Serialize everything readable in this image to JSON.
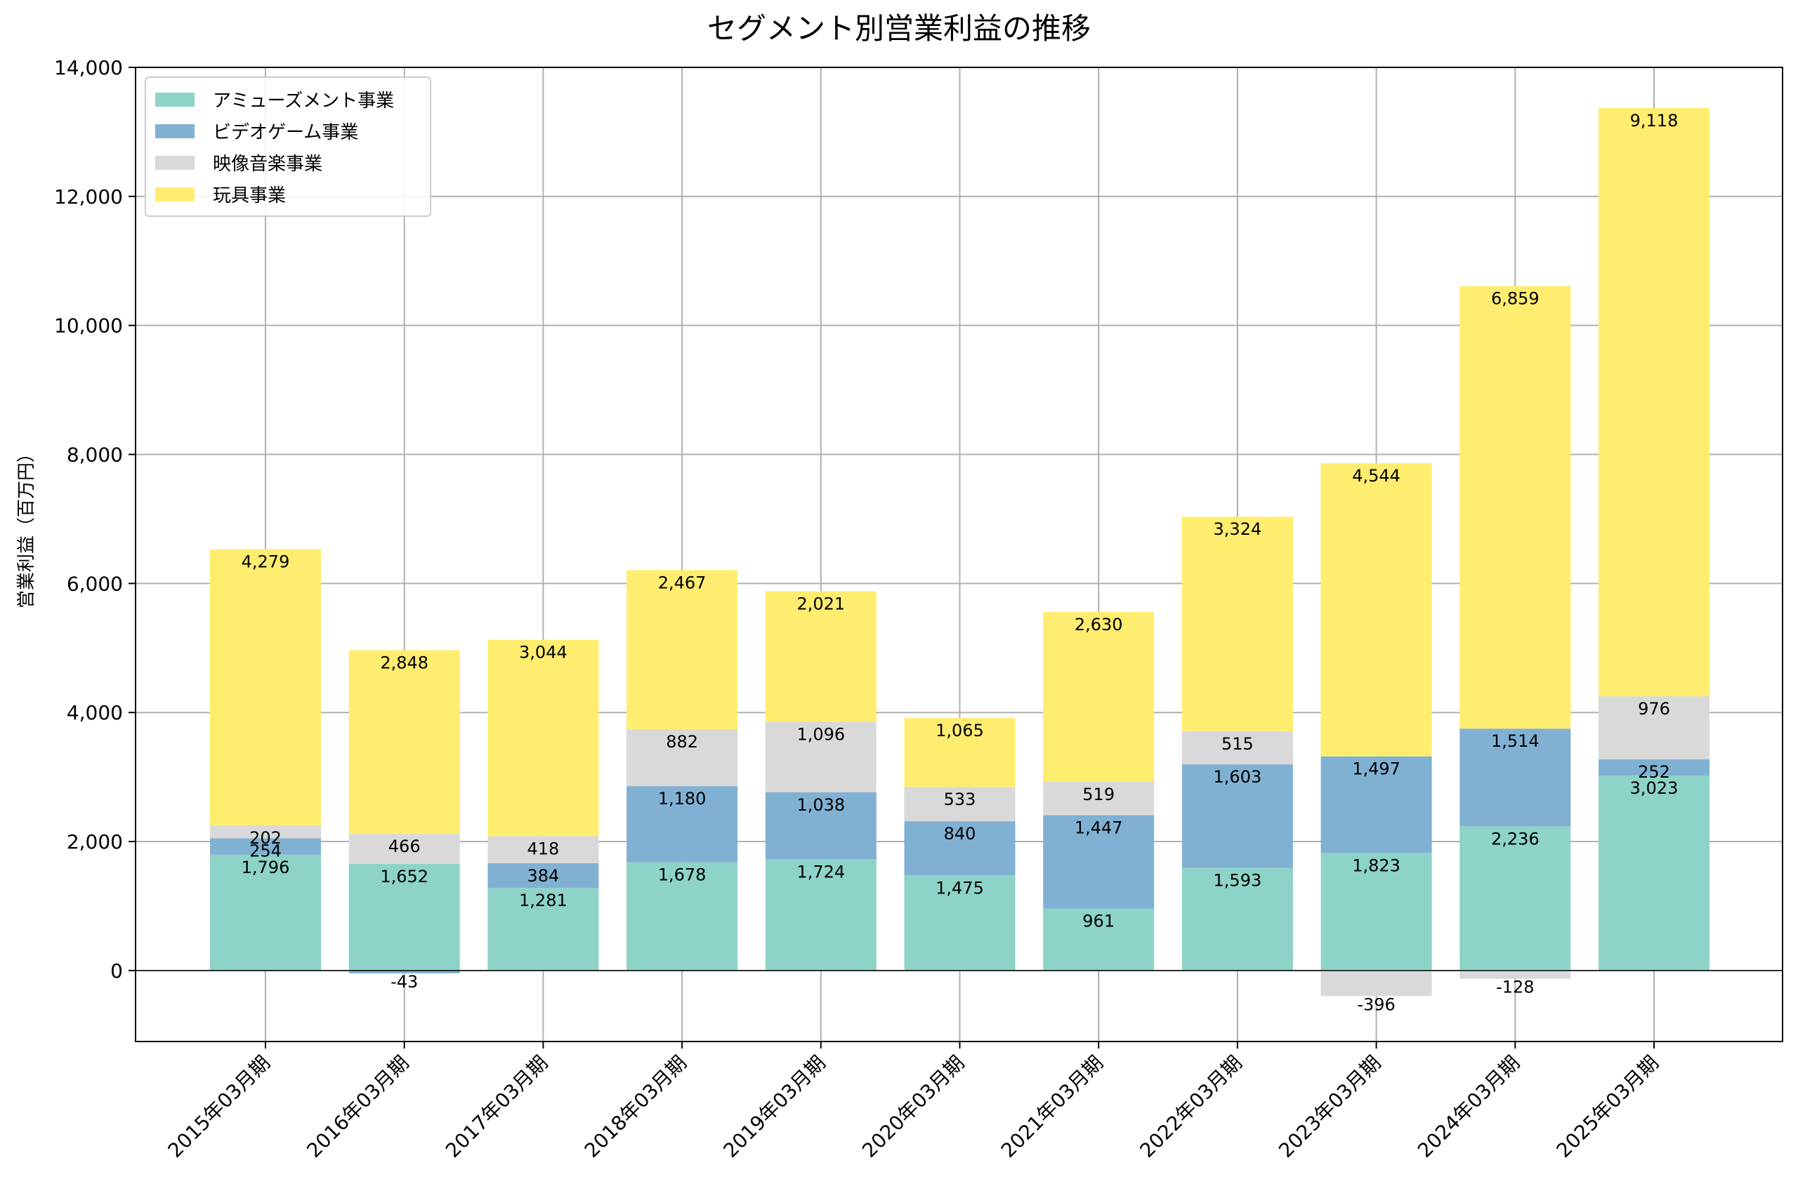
{
  "chart_data": {
    "type": "bar",
    "stacked": true,
    "title": "セグメント別営業利益の推移",
    "xlabel": "",
    "ylabel": "営業利益（百万円）",
    "ylim": [
      -1100,
      14000
    ],
    "yticks": [
      0,
      2000,
      4000,
      6000,
      8000,
      10000,
      12000,
      14000
    ],
    "ytick_labels": [
      "0",
      "2,000",
      "4,000",
      "6,000",
      "8,000",
      "10,000",
      "12,000",
      "14,000"
    ],
    "grid": true,
    "legend_position": "top-left",
    "categories": [
      "2015年03月期",
      "2016年03月期",
      "2017年03月期",
      "2018年03月期",
      "2019年03月期",
      "2020年03月期",
      "2021年03月期",
      "2022年03月期",
      "2023年03月期",
      "2024年03月期",
      "2025年03月期"
    ],
    "series": [
      {
        "name": "アミューズメント事業",
        "color": "#8dd3c7",
        "values": [
          1796,
          1652,
          1281,
          1678,
          1724,
          1475,
          961,
          1593,
          1823,
          2236,
          3023
        ]
      },
      {
        "name": "ビデオゲーム事業",
        "color": "#80b1d3",
        "values": [
          254,
          -43,
          384,
          1180,
          1038,
          840,
          1447,
          1603,
          1497,
          1514,
          252
        ]
      },
      {
        "name": "映像音楽事業",
        "color": "#d9d9d9",
        "values": [
          202,
          466,
          418,
          882,
          1096,
          533,
          519,
          515,
          -396,
          -128,
          976
        ]
      },
      {
        "name": "玩具事業",
        "color": "#ffed6f",
        "values": [
          4279,
          2848,
          3044,
          2467,
          2021,
          1065,
          2630,
          3324,
          4544,
          6859,
          9118
        ]
      }
    ],
    "data_labels": [
      [
        "1,796",
        "1,652",
        "1,281",
        "1,678",
        "1,724",
        "1,475",
        "961",
        "1,593",
        "1,823",
        "2,236",
        "3,023"
      ],
      [
        "254",
        "-43",
        "384",
        "1,180",
        "1,038",
        "840",
        "1,447",
        "1,603",
        "1,497",
        "1,514",
        "252"
      ],
      [
        "202",
        "466",
        "418",
        "882",
        "1,096",
        "533",
        "519",
        "515",
        "-396",
        "-128",
        "976"
      ],
      [
        "4,279",
        "2,848",
        "3,044",
        "2,467",
        "2,021",
        "1,065",
        "2,630",
        "3,324",
        "4,544",
        "6,859",
        "9,118"
      ]
    ]
  }
}
